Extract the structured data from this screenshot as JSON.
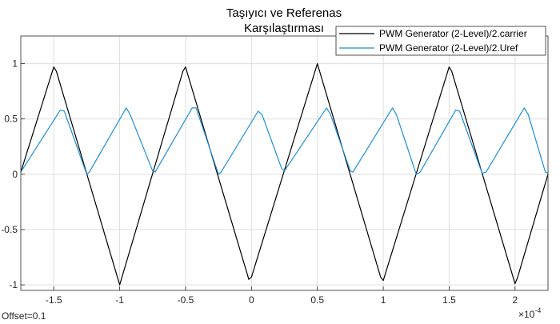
{
  "chart_data": {
    "type": "line",
    "title": [
      "Taşıyıcı ve Referenas",
      "Karşılaştırması"
    ],
    "xlabel": "",
    "ylabel": "",
    "xlim": [
      -1.75,
      2.25
    ],
    "ylim": [
      -1.05,
      1.25
    ],
    "x_ticks": [
      -1.5,
      -1,
      -0.5,
      0,
      0.5,
      1,
      1.5,
      2
    ],
    "x_tick_labels": [
      "-1.5",
      "-1",
      "-0.5",
      "0",
      "0.5",
      "1",
      "1.5",
      "2"
    ],
    "y_ticks": [
      1,
      0.5,
      0,
      -0.5,
      -1
    ],
    "y_tick_labels": [
      "1",
      "0.5",
      "0",
      "-0.5",
      "-1"
    ],
    "x_exponent": "×10",
    "x_exponent_power": "-4",
    "grid": true,
    "legend_position": "top-right",
    "offset_label": "Offset=0.1",
    "series": [
      {
        "name": "PWM Generator (2-Level)/2.carrier",
        "color": "#000000",
        "x": [
          -1.75,
          -1.5,
          -1.48,
          -1,
          -0.52,
          -0.5,
          -0.02,
          0,
          0.5,
          0.98,
          1.0,
          1.5,
          1.52,
          2.0,
          2.02,
          2.25
        ],
        "y": [
          0.02,
          0.97,
          0.93,
          -1.0,
          0.93,
          0.97,
          -0.95,
          -0.93,
          1.0,
          -0.93,
          -0.96,
          0.97,
          0.93,
          -0.99,
          -0.93,
          0.0
        ]
      },
      {
        "name": "PWM Generator (2-Level)/2.Uref",
        "color": "#1f8fd6",
        "x": [
          -1.75,
          -1.45,
          -1.42,
          -1.25,
          -1.23,
          -0.95,
          -0.92,
          -0.75,
          -0.73,
          -0.45,
          -0.42,
          -0.25,
          -0.23,
          0.05,
          0.08,
          0.23,
          0.25,
          0.57,
          0.6,
          0.75,
          0.77,
          1.07,
          1.1,
          1.25,
          1.28,
          1.55,
          1.58,
          1.75,
          1.78,
          2.07,
          2.1,
          2.23,
          2.25
        ],
        "y": [
          0.02,
          0.58,
          0.57,
          0.0,
          0.02,
          0.6,
          0.54,
          0.03,
          0.02,
          0.6,
          0.6,
          0.0,
          0.02,
          0.57,
          0.54,
          0.05,
          0.03,
          0.6,
          0.54,
          0.03,
          0.02,
          0.6,
          0.54,
          0.0,
          0.02,
          0.58,
          0.57,
          0.01,
          0.02,
          0.6,
          0.54,
          0.02,
          0.01
        ]
      }
    ]
  }
}
